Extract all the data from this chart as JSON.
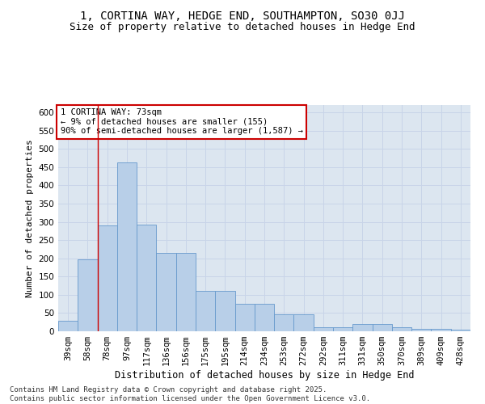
{
  "title1": "1, CORTINA WAY, HEDGE END, SOUTHAMPTON, SO30 0JJ",
  "title2": "Size of property relative to detached houses in Hedge End",
  "xlabel": "Distribution of detached houses by size in Hedge End",
  "ylabel": "Number of detached properties",
  "categories": [
    "39sqm",
    "58sqm",
    "78sqm",
    "97sqm",
    "117sqm",
    "136sqm",
    "156sqm",
    "175sqm",
    "195sqm",
    "214sqm",
    "234sqm",
    "253sqm",
    "272sqm",
    "292sqm",
    "311sqm",
    "331sqm",
    "350sqm",
    "370sqm",
    "389sqm",
    "409sqm",
    "428sqm"
  ],
  "values": [
    28,
    197,
    290,
    462,
    293,
    215,
    215,
    110,
    110,
    75,
    75,
    46,
    46,
    12,
    12,
    20,
    20,
    10,
    7,
    7,
    5
  ],
  "bar_color": "#b8cfe8",
  "bar_edge_color": "#6699cc",
  "grid_color": "#c8d4e8",
  "background_color": "#dce6f0",
  "vline_x_index": 1.5,
  "vline_color": "#cc0000",
  "annotation_text": "1 CORTINA WAY: 73sqm\n← 9% of detached houses are smaller (155)\n90% of semi-detached houses are larger (1,587) →",
  "annotation_box_facecolor": "#ffffff",
  "annotation_box_edgecolor": "#cc0000",
  "ylim": [
    0,
    620
  ],
  "yticks": [
    0,
    50,
    100,
    150,
    200,
    250,
    300,
    350,
    400,
    450,
    500,
    550,
    600
  ],
  "footer": "Contains HM Land Registry data © Crown copyright and database right 2025.\nContains public sector information licensed under the Open Government Licence v3.0.",
  "title1_fontsize": 10,
  "title2_fontsize": 9,
  "tick_fontsize": 7.5,
  "xlabel_fontsize": 8.5,
  "ylabel_fontsize": 8,
  "annotation_fontsize": 7.5,
  "footer_fontsize": 6.5
}
